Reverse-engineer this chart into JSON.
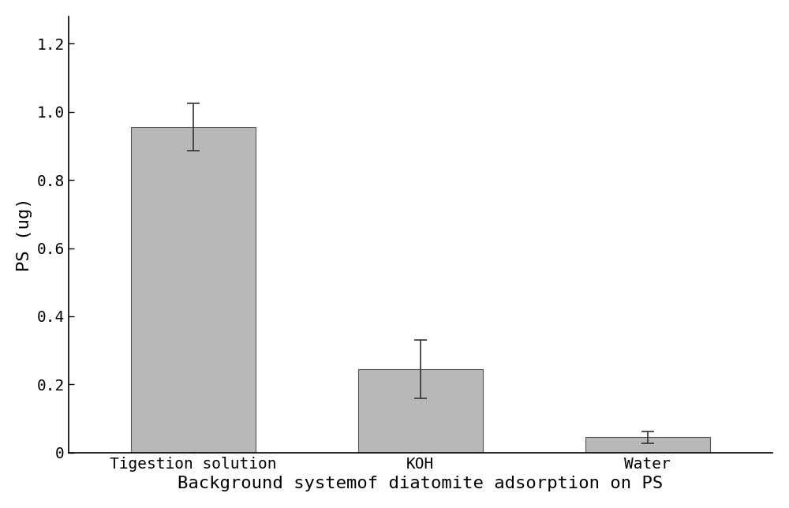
{
  "categories": [
    "Tigestion solution",
    "KOH",
    "Water"
  ],
  "values": [
    0.955,
    0.245,
    0.045
  ],
  "errors": [
    0.07,
    0.085,
    0.018
  ],
  "bar_color": "#b8b8b8",
  "bar_edgecolor": "#555555",
  "error_color": "#333333",
  "ylabel": "PS (ug)",
  "xlabel": "Background systemof diatomite adsorption on PS",
  "ylim": [
    0,
    1.28
  ],
  "yticks": [
    0.0,
    0.2,
    0.4,
    0.6,
    0.8,
    1.0,
    1.2
  ],
  "ytick_labels": [
    "0",
    "0.2",
    "0.4",
    "0.6",
    "0.8",
    "1.0",
    "1.2"
  ],
  "bar_width": 0.55,
  "label_fontsize": 16,
  "tick_fontsize": 14,
  "xlabel_fontsize": 16,
  "background_color": "#ffffff",
  "x_positions": [
    0,
    1,
    2
  ],
  "xlim": [
    -0.55,
    2.55
  ]
}
